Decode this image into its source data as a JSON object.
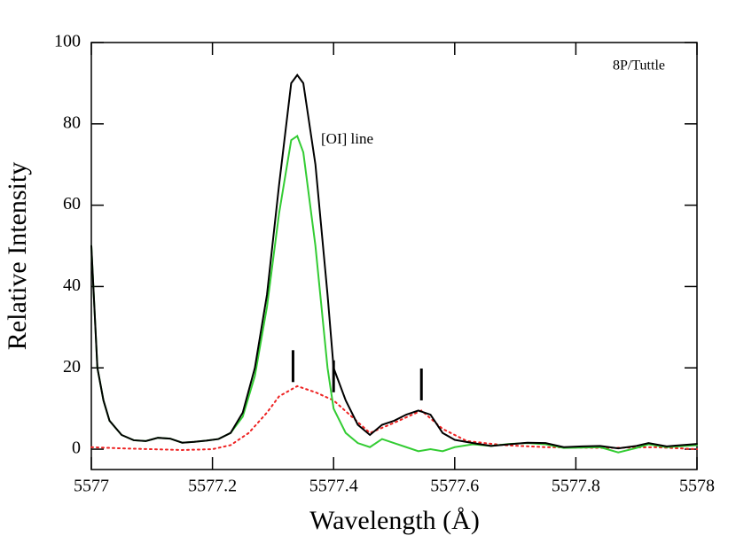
{
  "chart_data": {
    "type": "line",
    "xlabel": "Wavelength (Å)",
    "ylabel": "Relative Intensity",
    "annotations": [
      "8P/Tuttle",
      "[OI] line"
    ],
    "xlim": [
      5577,
      5578
    ],
    "ylim": [
      -5,
      100
    ],
    "xticks": [
      5577,
      5577.2,
      5577.4,
      5577.6,
      5577.8,
      5578
    ],
    "yticks": [
      0,
      20,
      40,
      60,
      80,
      100
    ],
    "markers": [
      5577.333,
      5577.4,
      5577.545
    ],
    "series": [
      {
        "color": "#000000",
        "dash": "solid",
        "x": [
          5577.0,
          5577.01,
          5577.02,
          5577.03,
          5577.05,
          5577.07,
          5577.09,
          5577.11,
          5577.13,
          5577.15,
          5577.17,
          5577.19,
          5577.21,
          5577.23,
          5577.25,
          5577.27,
          5577.29,
          5577.31,
          5577.33,
          5577.34,
          5577.35,
          5577.37,
          5577.39,
          5577.4,
          5577.42,
          5577.44,
          5577.46,
          5577.48,
          5577.5,
          5577.52,
          5577.54,
          5577.56,
          5577.58,
          5577.6,
          5577.63,
          5577.66,
          5577.69,
          5577.72,
          5577.75,
          5577.78,
          5577.81,
          5577.84,
          5577.87,
          5577.9,
          5577.92,
          5577.95,
          5578.0
        ],
        "values": [
          50,
          20,
          12,
          7,
          3.5,
          2.2,
          2.0,
          2.8,
          2.6,
          1.6,
          1.8,
          2.1,
          2.5,
          4,
          9,
          20,
          38,
          65,
          90,
          92,
          90,
          70,
          38,
          20,
          12,
          6,
          3.5,
          6,
          7,
          8.5,
          9.5,
          8.5,
          4,
          2.3,
          1.5,
          0.8,
          1.2,
          1.6,
          1.5,
          0.5,
          0.7,
          0.8,
          0.2,
          0.8,
          1.5,
          0.7,
          1.3
        ]
      },
      {
        "color": "#33cc33",
        "dash": "solid",
        "x": [
          5577.0,
          5577.01,
          5577.02,
          5577.03,
          5577.05,
          5577.07,
          5577.09,
          5577.11,
          5577.13,
          5577.15,
          5577.17,
          5577.19,
          5577.21,
          5577.23,
          5577.25,
          5577.27,
          5577.29,
          5577.31,
          5577.33,
          5577.34,
          5577.35,
          5577.37,
          5577.39,
          5577.4,
          5577.42,
          5577.44,
          5577.46,
          5577.48,
          5577.5,
          5577.52,
          5577.54,
          5577.56,
          5577.58,
          5577.6,
          5577.63,
          5577.66,
          5577.69,
          5577.72,
          5577.75,
          5577.78,
          5577.81,
          5577.84,
          5577.87,
          5577.9,
          5577.92,
          5577.95,
          5578.0
        ],
        "values": [
          50,
          20,
          12,
          7,
          3.5,
          2.2,
          2.0,
          2.8,
          2.6,
          1.6,
          1.8,
          2.1,
          2.5,
          4,
          8,
          18,
          35,
          58,
          76,
          77,
          73,
          50,
          20,
          10,
          4,
          1.5,
          0.5,
          2.5,
          1.5,
          0.5,
          -0.5,
          0,
          -0.5,
          0.5,
          1.2,
          0.8,
          1.3,
          1.5,
          1.2,
          0.3,
          0.4,
          0.5,
          -0.8,
          0.3,
          1.2,
          0.5,
          1.0
        ]
      },
      {
        "color": "#ee2222",
        "dash": "dotted",
        "x": [
          5577.0,
          5577.05,
          5577.1,
          5577.15,
          5577.2,
          5577.23,
          5577.26,
          5577.29,
          5577.31,
          5577.34,
          5577.37,
          5577.4,
          5577.43,
          5577.46,
          5577.5,
          5577.545,
          5577.58,
          5577.62,
          5577.68,
          5577.75,
          5577.85,
          5577.93,
          5578.0
        ],
        "values": [
          0.5,
          0.2,
          0,
          -0.2,
          0,
          1,
          4,
          9,
          13,
          15.5,
          14,
          12,
          8,
          4,
          6.5,
          9.5,
          5,
          2,
          1,
          0.5,
          0.3,
          0.5,
          0
        ]
      }
    ]
  }
}
